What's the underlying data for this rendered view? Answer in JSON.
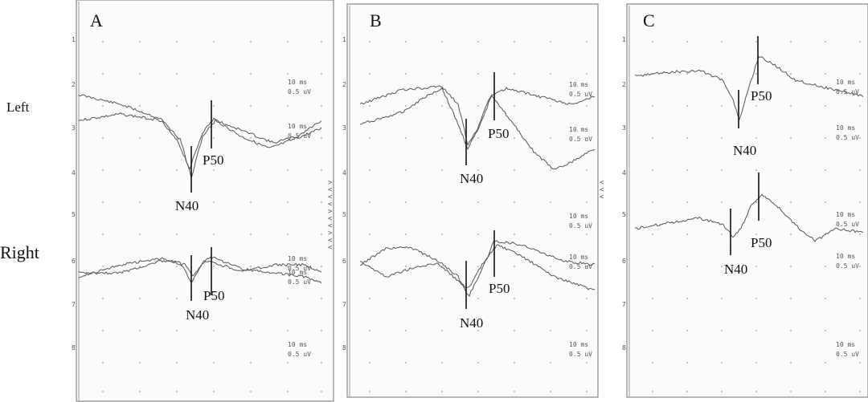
{
  "row_labels": {
    "left": "Left",
    "right": "Right"
  },
  "chart_data": {
    "type": "line",
    "title": "",
    "xlabel": "",
    "ylabel": "",
    "scale": {
      "time": "10 ms",
      "amplitude": "0.5 uV"
    },
    "panels": [
      {
        "letter": "A",
        "channels": [
          {
            "side": "Left",
            "N40": "N40",
            "P50": "P50"
          },
          {
            "side": "Right",
            "N40": "N40",
            "P50": "P50"
          }
        ]
      },
      {
        "letter": "B",
        "channels": [
          {
            "side": "Left",
            "N40": "N40",
            "P50": "P50"
          },
          {
            "side": "Right",
            "N40": "N40",
            "P50": "P50"
          }
        ]
      },
      {
        "letter": "C",
        "channels": [
          {
            "side": "Left",
            "N40": "N40",
            "P50": "P50"
          },
          {
            "side": "Right",
            "N40": "N40",
            "P50": "P50"
          }
        ]
      }
    ],
    "grid": true,
    "colors": {
      "trace": "#555555",
      "marker": "#111111",
      "frame": "#888888",
      "dots": "#9a9a9a"
    }
  }
}
